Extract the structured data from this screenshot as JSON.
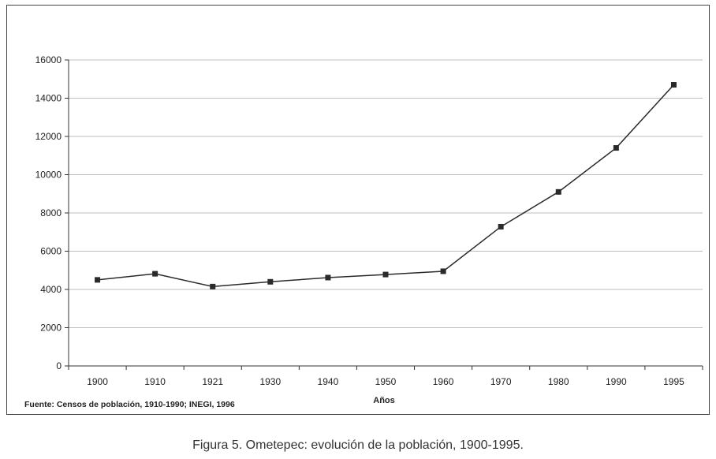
{
  "caption": "Figura 5. Ometepec: evolución de la población, 1900-1995.",
  "source_note": "Fuente: Censos de población, 1910-1990; INEGI, 1996",
  "chart_data": {
    "type": "line",
    "categories": [
      "1900",
      "1910",
      "1921",
      "1930",
      "1940",
      "1950",
      "1960",
      "1970",
      "1980",
      "1990",
      "1995"
    ],
    "series": [
      {
        "values": [
          4500,
          4820,
          4150,
          4400,
          4620,
          4780,
          4950,
          7280,
          9100,
          11400,
          14700
        ]
      }
    ],
    "title": "",
    "xlabel": "Años",
    "ylabel": "",
    "ylim": [
      0,
      16000
    ],
    "yticks": [
      "0",
      "2000",
      "4000",
      "6000",
      "8000",
      "10000",
      "12000",
      "14000",
      "16000"
    ],
    "grid": true,
    "legend": "none",
    "colors": {
      "line": "#2a2a2a",
      "marker": "#2a2a2a",
      "grid": "#bdbdbd"
    }
  }
}
